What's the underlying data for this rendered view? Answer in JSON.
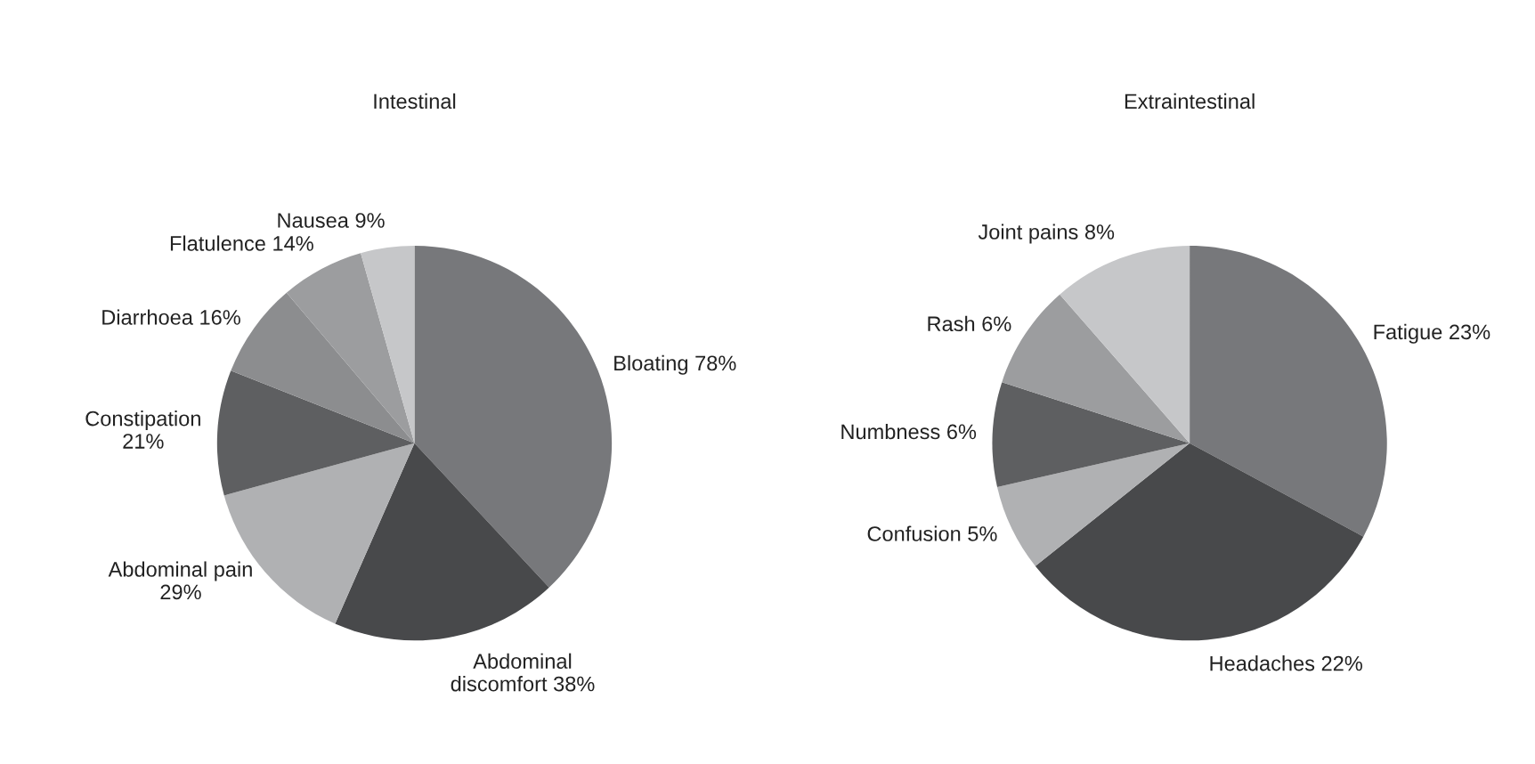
{
  "chart_data": [
    {
      "type": "pie",
      "title": "Intestinal",
      "categories": [
        "Bloating",
        "Abdominal\ndiscomfort",
        "Abdominal pain",
        "Constipation",
        "Diarrhoea",
        "Flatulence",
        "Nausea"
      ],
      "values": [
        78,
        38,
        29,
        21,
        16,
        14,
        9
      ],
      "value_labels": [
        "78%",
        "38%",
        "29%",
        "21%",
        "16%",
        "14%",
        "9%"
      ],
      "colors": [
        "#77787b",
        "#48494b",
        "#b0b1b3",
        "#5e5f61",
        "#8c8d8f",
        "#9c9d9f",
        "#c6c7c9"
      ],
      "legend": false
    },
    {
      "type": "pie",
      "title": "Extraintestinal",
      "categories": [
        "Fatigue",
        "Headaches",
        "Confusion",
        "Numbness",
        "Rash",
        "Joint pains"
      ],
      "values": [
        23,
        22,
        5,
        6,
        6,
        8
      ],
      "value_labels": [
        "23%",
        "22%",
        "5%",
        "6%",
        "6%",
        "8%"
      ],
      "colors": [
        "#77787b",
        "#48494b",
        "#b0b1b3",
        "#5e5f61",
        "#9c9d9f",
        "#c6c7c9"
      ],
      "legend": false
    }
  ]
}
